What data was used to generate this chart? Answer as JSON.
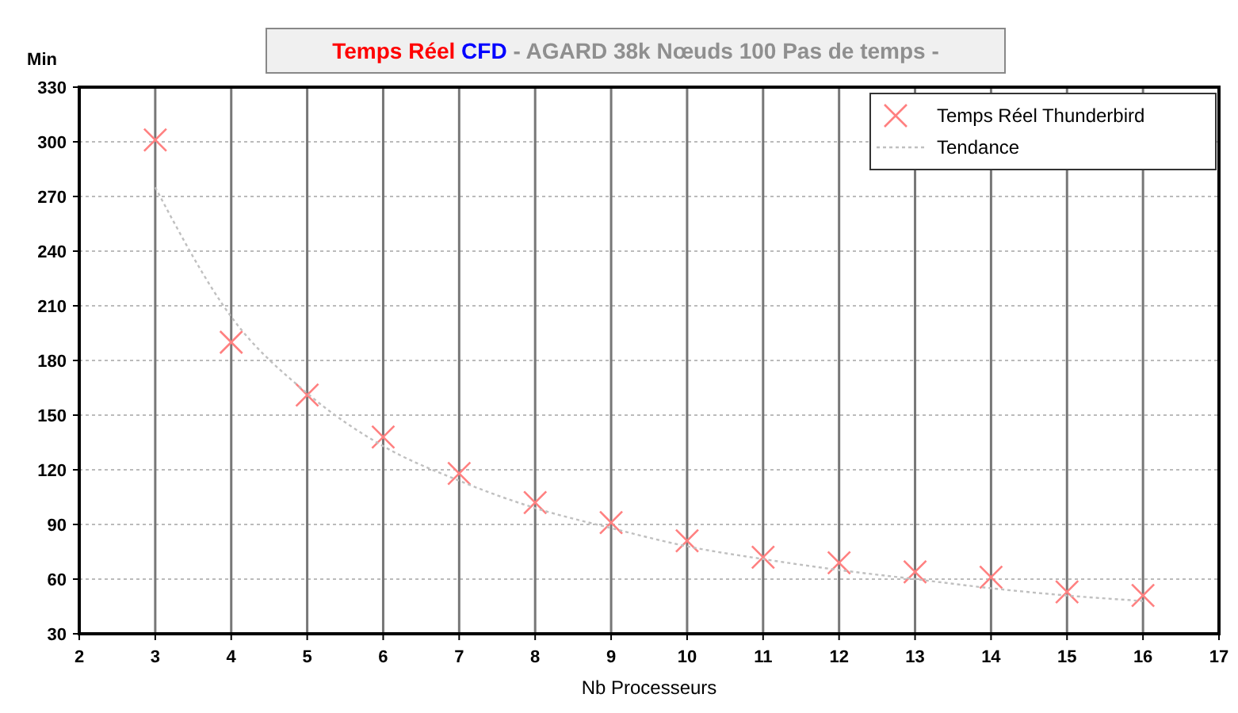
{
  "chart_data": {
    "type": "scatter",
    "title": "Temps Réel CFD",
    "subtitle": "- AGARD 38k Nœuds 100 Pas de temps -",
    "xlabel": "Nb Processeurs",
    "ylabel": "Min",
    "xlim": [
      2,
      17
    ],
    "xticks": [
      2,
      3,
      4,
      5,
      6,
      7,
      8,
      9,
      10,
      11,
      12,
      13,
      14,
      15,
      16,
      17
    ],
    "ylim": [
      30,
      330
    ],
    "yticks": [
      30,
      60,
      90,
      120,
      150,
      180,
      210,
      240,
      270,
      300,
      330
    ],
    "grid": true,
    "legend": "top right",
    "series": [
      {
        "name": "Temps Réel Thunderbird",
        "marker": "cross",
        "color": "#ff8080",
        "x": [
          3,
          4,
          5,
          6,
          7,
          8,
          9,
          10,
          11,
          12,
          13,
          14,
          15,
          16
        ],
        "values": [
          301,
          190,
          161,
          138,
          118,
          102,
          91,
          81,
          72,
          69,
          64,
          61,
          53,
          51
        ]
      },
      {
        "name": "Tendance",
        "type": "line",
        "line_style": "dotted",
        "marker": "none",
        "color": "#c0c0c0",
        "x": [
          3,
          4,
          5,
          6,
          7,
          8,
          9,
          10,
          11,
          12,
          13,
          14,
          15,
          16
        ],
        "values": [
          275,
          204,
          162,
          133,
          114,
          99,
          88,
          78,
          71,
          65,
          60,
          55,
          51,
          48
        ]
      }
    ]
  }
}
